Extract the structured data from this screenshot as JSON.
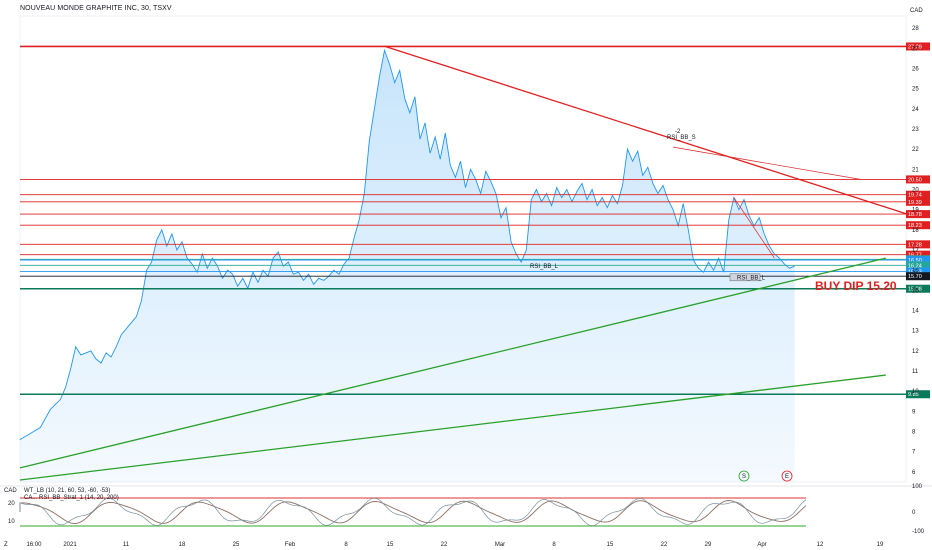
{
  "header": {
    "title": "NOUVEAU MONDE GRAPHITE INC, 30, TSXV"
  },
  "price_axis": {
    "currency": "CAD",
    "tick_labels": [
      "28",
      "27",
      "26",
      "25",
      "24",
      "23",
      "22",
      "21",
      "20",
      "19",
      "18",
      "17",
      "16",
      "15",
      "14",
      "13",
      "12",
      "11",
      "10",
      "9",
      "8",
      "7",
      "6"
    ]
  },
  "time_axis": {
    "tick_labels": [
      "16:00",
      "2021",
      "11",
      "18",
      "25",
      "Feb",
      "8",
      "15",
      "22",
      "Mar",
      "8",
      "15",
      "22",
      "29",
      "Apr",
      "12",
      "19"
    ]
  },
  "osc_axis": {
    "tick_labels": [
      "100",
      "0",
      "-100"
    ],
    "left_labels": [
      "CAD",
      "20",
      "10"
    ],
    "scale_label": "Z"
  },
  "horizontal_levels": [
    {
      "label": "27.09",
      "value": 27.09,
      "color": "#e02020"
    },
    {
      "label": "20.50",
      "value": 20.5,
      "color": "#e02020"
    },
    {
      "label": "19.74",
      "value": 19.74,
      "color": "#e02020"
    },
    {
      "label": "19.39",
      "value": 19.39,
      "color": "#e02020"
    },
    {
      "label": "18.78",
      "value": 18.78,
      "color": "#e02020"
    },
    {
      "label": "18.23",
      "value": 18.23,
      "color": "#e02020"
    },
    {
      "label": "17.28",
      "value": 17.28,
      "color": "#e02020"
    },
    {
      "label": "16.77",
      "value": 16.77,
      "color": "#e02020"
    },
    {
      "label": "16.54",
      "value": 16.54,
      "color": "#26a69a"
    },
    {
      "label": "16.50",
      "value": 16.5,
      "color": "#2196f3"
    },
    {
      "label": "16.24",
      "value": 16.24,
      "color": "#26a69a"
    },
    {
      "label": "15.93",
      "value": 15.93,
      "color": "#2196f3"
    },
    {
      "label": "15.70",
      "value": 15.7,
      "color": "#131722"
    },
    {
      "label": "15.08",
      "value": 15.08,
      "color": "#0b7a5a"
    },
    {
      "label": "9.85",
      "value": 9.85,
      "color": "#0b7a5a"
    }
  ],
  "annotations": {
    "buy_dip": "BUY DIP 15.20",
    "rsi_bb_s": "RSI_BB_S",
    "rsi_bb_l_1": "RSI_BB_L",
    "rsi_bb_l_2": "RSI_BB_L",
    "minus2": "-2",
    "marker_s": "S",
    "marker_e": "E"
  },
  "indicator": {
    "legend": "WT_LB (10, 21, 60, 53, -60, -53)",
    "legend2": "CA... RSI_BB_Strat_1 (14, 20, 200)"
  },
  "chart_data": {
    "type": "area",
    "title": "NOUVEAU MONDE GRAPHITE INC, 30, TSXV",
    "xlabel": "",
    "ylabel": "CAD",
    "ylim": [
      5.5,
      28.6
    ],
    "x_ticks": [
      "16:00",
      "2021",
      "11",
      "18",
      "25",
      "Feb",
      "8",
      "15",
      "22",
      "Mar",
      "8",
      "15",
      "22",
      "29",
      "Apr",
      "12",
      "19"
    ],
    "price_series": {
      "name": "",
      "points": [
        [
          0,
          7.6
        ],
        [
          2,
          7.9
        ],
        [
          4,
          8.2
        ],
        [
          6,
          9.1
        ],
        [
          8,
          9.6
        ],
        [
          9,
          10.2
        ],
        [
          10,
          11.1
        ],
        [
          11,
          12.2
        ],
        [
          12,
          11.8
        ],
        [
          13,
          11.9
        ],
        [
          14,
          12.0
        ],
        [
          15,
          11.6
        ],
        [
          16,
          11.4
        ],
        [
          17,
          11.9
        ],
        [
          18,
          11.7
        ],
        [
          19,
          12.2
        ],
        [
          20,
          12.8
        ],
        [
          21,
          13.1
        ],
        [
          22,
          13.4
        ],
        [
          23,
          13.7
        ],
        [
          24,
          14.5
        ],
        [
          25,
          16.0
        ],
        [
          26,
          16.4
        ],
        [
          27,
          17.5
        ],
        [
          28,
          18.0
        ],
        [
          29,
          17.2
        ],
        [
          30,
          17.8
        ],
        [
          31,
          17.0
        ],
        [
          32,
          17.4
        ],
        [
          33,
          16.6
        ],
        [
          34,
          16.3
        ],
        [
          35,
          15.9
        ],
        [
          36,
          16.8
        ],
        [
          37,
          16.1
        ],
        [
          38,
          16.6
        ],
        [
          39,
          16.2
        ],
        [
          40,
          15.6
        ],
        [
          41,
          16.0
        ],
        [
          42,
          15.8
        ],
        [
          43,
          15.2
        ],
        [
          44,
          15.6
        ],
        [
          45,
          15.1
        ],
        [
          46,
          15.9
        ],
        [
          47,
          15.4
        ],
        [
          48,
          16.0
        ],
        [
          49,
          15.7
        ],
        [
          50,
          16.6
        ],
        [
          51,
          16.9
        ],
        [
          52,
          16.2
        ],
        [
          53,
          16.4
        ],
        [
          54,
          15.8
        ],
        [
          55,
          15.9
        ],
        [
          56,
          15.5
        ],
        [
          57,
          15.8
        ],
        [
          58,
          15.3
        ],
        [
          59,
          15.6
        ],
        [
          60,
          15.5
        ],
        [
          61,
          15.7
        ],
        [
          62,
          16.0
        ],
        [
          63,
          15.8
        ],
        [
          64,
          16.3
        ],
        [
          65,
          16.6
        ],
        [
          66,
          17.6
        ],
        [
          67,
          18.5
        ],
        [
          68,
          19.8
        ],
        [
          69,
          22.4
        ],
        [
          70,
          24.0
        ],
        [
          71,
          25.6
        ],
        [
          72,
          26.9
        ],
        [
          73,
          26.2
        ],
        [
          74,
          25.3
        ],
        [
          75,
          25.9
        ],
        [
          76,
          24.5
        ],
        [
          77,
          23.8
        ],
        [
          78,
          24.6
        ],
        [
          79,
          22.5
        ],
        [
          80,
          23.3
        ],
        [
          81,
          21.8
        ],
        [
          82,
          22.6
        ],
        [
          83,
          21.5
        ],
        [
          84,
          22.8
        ],
        [
          85,
          21.2
        ],
        [
          86,
          20.6
        ],
        [
          87,
          21.4
        ],
        [
          88,
          20.1
        ],
        [
          89,
          21.0
        ],
        [
          90,
          20.5
        ],
        [
          91,
          19.8
        ],
        [
          92,
          20.9
        ],
        [
          93,
          20.4
        ],
        [
          94,
          19.8
        ],
        [
          95,
          18.6
        ],
        [
          96,
          19.1
        ],
        [
          97,
          17.4
        ],
        [
          98,
          16.8
        ],
        [
          99,
          16.4
        ],
        [
          100,
          17.0
        ],
        [
          101,
          19.5
        ],
        [
          102,
          20.0
        ],
        [
          103,
          19.4
        ],
        [
          104,
          19.8
        ],
        [
          105,
          19.2
        ],
        [
          106,
          20.1
        ],
        [
          107,
          19.6
        ],
        [
          108,
          20.0
        ],
        [
          109,
          19.4
        ],
        [
          110,
          19.9
        ],
        [
          111,
          20.3
        ],
        [
          112,
          19.5
        ],
        [
          113,
          20.0
        ],
        [
          114,
          19.2
        ],
        [
          115,
          19.6
        ],
        [
          116,
          19.1
        ],
        [
          117,
          19.7
        ],
        [
          118,
          19.3
        ],
        [
          119,
          20.2
        ],
        [
          120,
          22.0
        ],
        [
          121,
          21.4
        ],
        [
          122,
          21.9
        ],
        [
          123,
          20.7
        ],
        [
          124,
          21.1
        ],
        [
          125,
          20.3
        ],
        [
          126,
          19.8
        ],
        [
          127,
          20.2
        ],
        [
          128,
          19.5
        ],
        [
          129,
          19.0
        ],
        [
          130,
          18.2
        ],
        [
          131,
          19.3
        ],
        [
          132,
          18.0
        ],
        [
          133,
          16.5
        ],
        [
          134,
          16.1
        ],
        [
          135,
          15.9
        ],
        [
          136,
          16.4
        ],
        [
          137,
          16.0
        ],
        [
          138,
          16.6
        ],
        [
          139,
          15.9
        ],
        [
          140,
          18.5
        ],
        [
          141,
          19.6
        ],
        [
          142,
          19.0
        ],
        [
          143,
          19.5
        ],
        [
          144,
          18.7
        ],
        [
          145,
          18.2
        ],
        [
          146,
          18.6
        ],
        [
          147,
          17.8
        ],
        [
          148,
          17.2
        ],
        [
          149,
          16.8
        ],
        [
          150,
          16.6
        ],
        [
          151,
          16.3
        ],
        [
          152,
          16.1
        ],
        [
          153,
          16.2
        ]
      ],
      "x_domain": [
        0,
        175
      ]
    },
    "trendlines": [
      {
        "name": "resistance",
        "color": "#e02020",
        "from": [
          72,
          27.1
        ],
        "to": [
          175,
          18.8
        ]
      },
      {
        "name": "resistance-2",
        "color": "#e02020",
        "from": [
          129,
          22.1
        ],
        "to": [
          166,
          20.5
        ]
      },
      {
        "name": "resistance-3",
        "color": "#e02020",
        "from": [
          141,
          19.6
        ],
        "to": [
          149,
          16.6
        ]
      },
      {
        "name": "support-upper",
        "color": "#2aa02a",
        "from": [
          0,
          6.2
        ],
        "to": [
          171,
          16.6
        ]
      },
      {
        "name": "support-lower",
        "color": "#2aa02a",
        "from": [
          0,
          5.6
        ],
        "to": [
          171,
          10.8
        ]
      }
    ]
  }
}
